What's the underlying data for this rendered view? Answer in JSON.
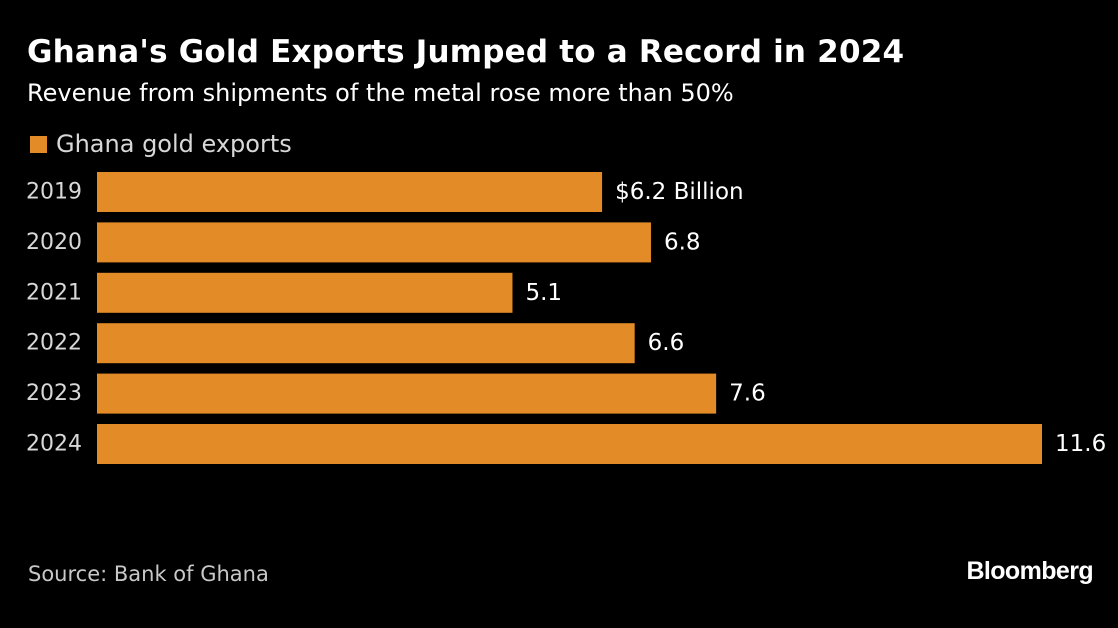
{
  "header": {
    "title": "Ghana's Gold Exports Jumped to a Record in 2024",
    "subtitle": "Revenue from shipments of the metal rose more than 50%"
  },
  "footer": {
    "source": "Source: Bank of Ghana",
    "logo": "Bloomberg"
  },
  "colors": {
    "background": "#000000",
    "bar": "#E38C27",
    "text": "#ffffff"
  },
  "chart_data": {
    "type": "bar",
    "orientation": "horizontal",
    "categories": [
      "2019",
      "2020",
      "2021",
      "2022",
      "2023",
      "2024"
    ],
    "series": [
      {
        "name": "Ghana gold exports",
        "values": [
          6.2,
          6.8,
          5.1,
          6.6,
          7.6,
          11.6
        ]
      }
    ],
    "data_labels": [
      "$6.2 Billion",
      "6.8",
      "5.1",
      "6.6",
      "7.6",
      "11.6"
    ],
    "title": "Ghana's Gold Exports Jumped to a Record in 2024",
    "subtitle": "Revenue from shipments of the metal rose more than 50%",
    "unit": "Billion",
    "xlim": [
      0,
      11.6
    ],
    "legend_position": "top-left",
    "grid": false
  }
}
